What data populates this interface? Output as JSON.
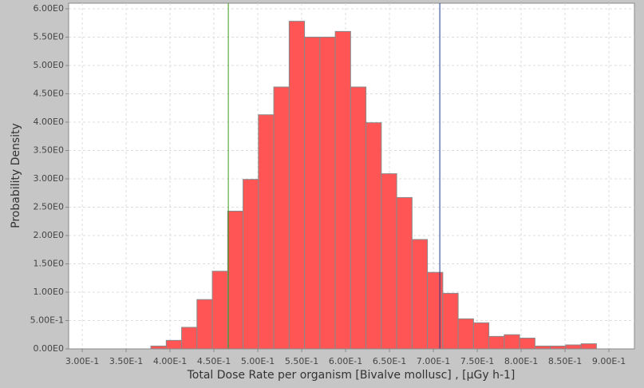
{
  "chart_data": {
    "type": "histogram",
    "x_label": "Total Dose Rate per organism [Bivalve mollusc] , [µGy h-1]",
    "y_label": "Probability Density",
    "bins": [
      0.3782,
      0.3957,
      0.4132,
      0.4307,
      0.4482,
      0.4657,
      0.4832,
      0.5007,
      0.5182,
      0.5357,
      0.5532,
      0.5707,
      0.5882,
      0.6057,
      0.6232,
      0.6407,
      0.6582,
      0.6757,
      0.6932,
      0.7107,
      0.7282,
      0.7457,
      0.7632,
      0.7807,
      0.7982,
      0.8157,
      0.8332,
      0.8507,
      0.8682,
      0.8857
    ],
    "values": [
      0.05,
      0.15,
      0.38,
      0.87,
      1.37,
      2.43,
      2.99,
      4.13,
      4.62,
      5.78,
      5.5,
      5.5,
      5.6,
      4.62,
      3.99,
      3.09,
      2.67,
      1.93,
      1.35,
      0.98,
      0.53,
      0.46,
      0.22,
      0.25,
      0.19,
      0.05,
      0.05,
      0.07,
      0.09
    ],
    "color": "#ff5555",
    "markers": [
      {
        "value": 0.4664,
        "color": "#3a9a1a"
      },
      {
        "value": 0.7073,
        "color": "#1a3a8a"
      }
    ],
    "xlim": [
      0.2845,
      0.929
    ],
    "ylim": [
      0,
      6.0
    ],
    "xticks": [
      {
        "value": 0.3,
        "label": "3.00E-1"
      },
      {
        "value": 0.35,
        "label": "3.50E-1"
      },
      {
        "value": 0.4,
        "label": "4.00E-1"
      },
      {
        "value": 0.45,
        "label": "4.50E-1"
      },
      {
        "value": 0.5,
        "label": "5.00E-1"
      },
      {
        "value": 0.55,
        "label": "5.50E-1"
      },
      {
        "value": 0.6,
        "label": "6.00E-1"
      },
      {
        "value": 0.65,
        "label": "6.50E-1"
      },
      {
        "value": 0.7,
        "label": "7.00E-1"
      },
      {
        "value": 0.75,
        "label": "7.50E-1"
      },
      {
        "value": 0.8,
        "label": "8.00E-1"
      },
      {
        "value": 0.85,
        "label": "8.50E-1"
      },
      {
        "value": 0.9,
        "label": "9.00E-1"
      }
    ],
    "yticks": [
      {
        "value": 0,
        "label": "0.00E0"
      },
      {
        "value": 0.5,
        "label": "5.00E-1"
      },
      {
        "value": 1.0,
        "label": "1.00E0"
      },
      {
        "value": 1.5,
        "label": "1.50E0"
      },
      {
        "value": 2.0,
        "label": "2.00E0"
      },
      {
        "value": 2.5,
        "label": "2.50E0"
      },
      {
        "value": 3.0,
        "label": "3.00E0"
      },
      {
        "value": 3.5,
        "label": "3.50E0"
      },
      {
        "value": 4.0,
        "label": "4.00E0"
      },
      {
        "value": 4.5,
        "label": "4.50E0"
      },
      {
        "value": 5.0,
        "label": "5.00E0"
      },
      {
        "value": 5.5,
        "label": "5.50E0"
      },
      {
        "value": 6.0,
        "label": "6.00E0"
      }
    ],
    "grid": true
  }
}
